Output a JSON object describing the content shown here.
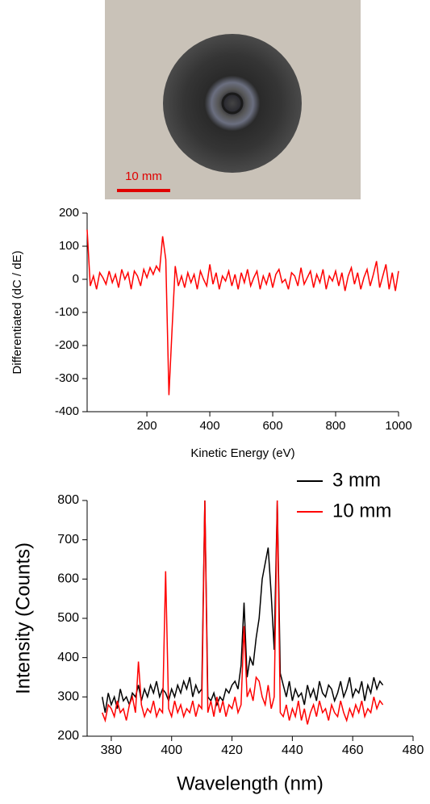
{
  "photo": {
    "scale_label": "10 mm"
  },
  "chart_data": [
    {
      "type": "line",
      "y_label": "Differentiated (dC / dE)",
      "x_label": "Kinetic Energy (eV)",
      "color": "#ff0000",
      "x": [
        10,
        20,
        30,
        40,
        50,
        60,
        70,
        80,
        90,
        100,
        110,
        120,
        130,
        140,
        150,
        160,
        170,
        180,
        190,
        200,
        210,
        220,
        230,
        240,
        250,
        260,
        270,
        280,
        290,
        300,
        310,
        320,
        330,
        340,
        350,
        360,
        370,
        380,
        390,
        400,
        410,
        420,
        430,
        440,
        450,
        460,
        470,
        480,
        490,
        500,
        510,
        520,
        530,
        540,
        550,
        560,
        570,
        580,
        590,
        600,
        610,
        620,
        630,
        640,
        650,
        660,
        670,
        680,
        690,
        700,
        710,
        720,
        730,
        740,
        750,
        760,
        770,
        780,
        790,
        800,
        810,
        820,
        830,
        840,
        850,
        860,
        870,
        880,
        890,
        900,
        910,
        920,
        930,
        940,
        950,
        960,
        970,
        980,
        990,
        1000
      ],
      "values": [
        150,
        -20,
        10,
        -30,
        20,
        5,
        -15,
        25,
        -10,
        15,
        -25,
        30,
        0,
        20,
        -30,
        25,
        10,
        -20,
        30,
        5,
        35,
        15,
        40,
        25,
        130,
        60,
        -350,
        -150,
        40,
        -20,
        10,
        -25,
        20,
        -10,
        15,
        -30,
        25,
        0,
        -20,
        45,
        -15,
        20,
        -30,
        10,
        -5,
        25,
        -20,
        15,
        -30,
        20,
        -10,
        30,
        -20,
        5,
        25,
        -30,
        10,
        -15,
        20,
        -25,
        15,
        30,
        -10,
        0,
        -30,
        20,
        10,
        -20,
        35,
        -15,
        5,
        25,
        -25,
        15,
        -10,
        30,
        -30,
        10,
        -5,
        25,
        -20,
        20,
        -35,
        10,
        35,
        -15,
        20,
        -30,
        5,
        30,
        -20,
        15,
        55,
        -25,
        10,
        45,
        -30,
        20,
        -35,
        25
      ],
      "xlim": [
        10,
        1000
      ],
      "ylim": [
        -400,
        200
      ],
      "xticks": [
        200,
        400,
        600,
        800,
        1000
      ],
      "yticks": [
        -400,
        -300,
        -200,
        -100,
        0,
        100,
        200
      ]
    },
    {
      "type": "line",
      "y_label": "Intensity (Counts)",
      "x_label": "Wavelength (nm)",
      "legend": "top-right",
      "x": [
        377,
        378,
        379,
        380,
        381,
        382,
        383,
        384,
        385,
        386,
        387,
        388,
        389,
        390,
        391,
        392,
        393,
        394,
        395,
        396,
        397,
        398,
        399,
        400,
        401,
        402,
        403,
        404,
        405,
        406,
        407,
        408,
        409,
        410,
        411,
        412,
        413,
        414,
        415,
        416,
        417,
        418,
        419,
        420,
        421,
        422,
        423,
        424,
        425,
        426,
        427,
        428,
        429,
        430,
        431,
        432,
        433,
        434,
        435,
        436,
        437,
        438,
        439,
        440,
        441,
        442,
        443,
        444,
        445,
        446,
        447,
        448,
        449,
        450,
        451,
        452,
        453,
        454,
        455,
        456,
        457,
        458,
        459,
        460,
        461,
        462,
        463,
        464,
        465,
        466,
        467,
        468,
        469,
        470
      ],
      "series": [
        {
          "name": "3 mm",
          "color": "#000000",
          "values": [
            300,
            260,
            310,
            280,
            300,
            270,
            320,
            290,
            300,
            280,
            310,
            300,
            330,
            290,
            320,
            300,
            330,
            310,
            340,
            300,
            320,
            310,
            290,
            320,
            300,
            330,
            310,
            340,
            320,
            350,
            300,
            330,
            310,
            320,
            800,
            300,
            290,
            310,
            280,
            300,
            290,
            320,
            310,
            330,
            340,
            320,
            380,
            540,
            350,
            400,
            380,
            450,
            500,
            600,
            640,
            680,
            560,
            420,
            800,
            360,
            330,
            300,
            340,
            290,
            320,
            300,
            310,
            280,
            330,
            300,
            320,
            290,
            340,
            310,
            300,
            330,
            320,
            290,
            310,
            340,
            300,
            320,
            350,
            300,
            320,
            310,
            340,
            290,
            330,
            310,
            350,
            320,
            340,
            330
          ]
        },
        {
          "name": "10 mm",
          "color": "#ff0000",
          "values": [
            260,
            240,
            280,
            270,
            250,
            290,
            260,
            270,
            240,
            280,
            300,
            260,
            390,
            280,
            250,
            270,
            260,
            290,
            250,
            270,
            260,
            620,
            270,
            250,
            290,
            260,
            280,
            250,
            270,
            260,
            290,
            250,
            280,
            270,
            800,
            260,
            290,
            250,
            300,
            260,
            290,
            250,
            280,
            270,
            300,
            260,
            280,
            480,
            300,
            320,
            290,
            350,
            340,
            300,
            280,
            330,
            270,
            300,
            800,
            260,
            250,
            280,
            240,
            270,
            250,
            290,
            240,
            270,
            230,
            260,
            280,
            250,
            290,
            260,
            270,
            240,
            280,
            260,
            250,
            290,
            260,
            240,
            270,
            250,
            280,
            260,
            290,
            250,
            270,
            260,
            300,
            270,
            290,
            280
          ]
        }
      ],
      "xlim": [
        372,
        480
      ],
      "ylim": [
        200,
        800
      ],
      "xticks": [
        380,
        400,
        420,
        440,
        460,
        480
      ],
      "yticks": [
        200,
        300,
        400,
        500,
        600,
        700,
        800
      ]
    }
  ]
}
